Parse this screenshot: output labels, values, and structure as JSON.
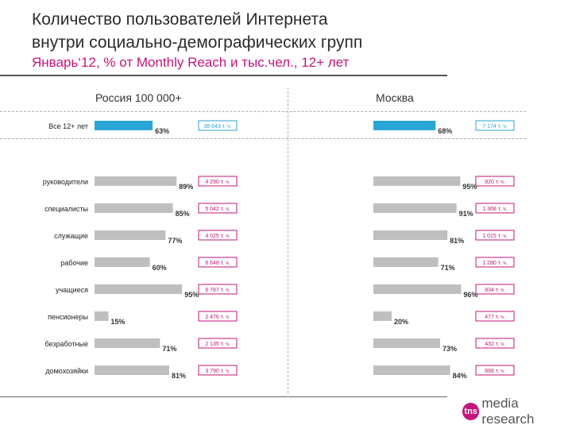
{
  "header": {
    "title_line1": "Количество пользователей Интернета",
    "title_line2": "внутри социально-демографических групп",
    "subtitle": "Январь‘12, % от Monthly Reach и тыс.чел., 12+ лет"
  },
  "panels": {
    "left_title": "Россия 100 000+",
    "right_title": "Москва"
  },
  "brand": {
    "logo_text": "tns",
    "name": "media research"
  },
  "colors": {
    "total_bar": "#2aa6d6",
    "group_bar": "#bfbfbf",
    "total_box": "#2aa6d6",
    "group_box": "#c3157b",
    "accent": "#c3157b"
  },
  "chart_data": [
    {
      "type": "bar",
      "orientation": "horizontal",
      "title": "Россия 100 000+",
      "categories": [
        "Все 12+ лет",
        "руководители",
        "специалисты",
        "служащие",
        "рабочие",
        "учащиеся",
        "пенсионеры",
        "безработные",
        "домохозяйки"
      ],
      "values": [
        63,
        89,
        85,
        77,
        60,
        95,
        15,
        71,
        81
      ],
      "value_labels": [
        "63%",
        "89%",
        "85%",
        "77%",
        "60%",
        "95%",
        "15%",
        "71%",
        "81%"
      ],
      "users": [
        "38 643 т. ч.",
        "4 290 т. ч.",
        "5 042 т. ч.",
        "4 025 т. ч.",
        "6 648 т. ч.",
        "6 787 т. ч.",
        "2 476 т. ч.",
        "2 135 т. ч.",
        "3 790 т. ч."
      ],
      "xlim": [
        0,
        100
      ]
    },
    {
      "type": "bar",
      "orientation": "horizontal",
      "title": "Москва",
      "categories": [
        "",
        "",
        "",
        "",
        "",
        "",
        "",
        "",
        ""
      ],
      "values": [
        68,
        95,
        91,
        81,
        71,
        96,
        20,
        73,
        84
      ],
      "value_labels": [
        "68%",
        "95%",
        "91%",
        "81%",
        "71%",
        "96%",
        "20%",
        "73%",
        "84%"
      ],
      "users": [
        "7 174 т. ч.",
        "820 т. ч.",
        "1 368 т. ч.",
        "1 015 т. ч.",
        "1 280 т. ч.",
        "834 т. ч.",
        "477 т. ч.",
        "432 т. ч.",
        "668 т. ч."
      ],
      "xlim": [
        0,
        100
      ]
    }
  ]
}
